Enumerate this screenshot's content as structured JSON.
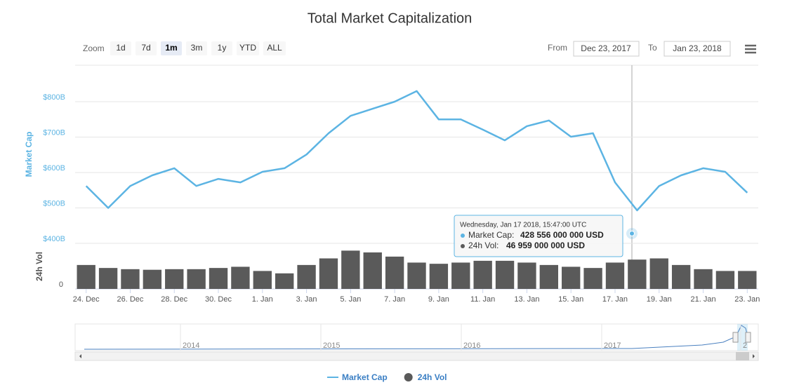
{
  "chart_data": {
    "type": "line",
    "title": "Total Market Capitalization",
    "zoom": {
      "label": "Zoom",
      "buttons": [
        "1d",
        "7d",
        "1m",
        "3m",
        "1y",
        "YTD",
        "ALL"
      ],
      "selected": 2
    },
    "range": {
      "from_label": "From",
      "from": "Dec 23, 2017",
      "to_label": "To",
      "to": "Jan 23, 2018"
    },
    "categories": [
      "24. Dec",
      null,
      "26. Dec",
      null,
      "28. Dec",
      null,
      "30. Dec",
      null,
      "1. Jan",
      null,
      "3. Jan",
      null,
      "5. Jan",
      null,
      "7. Jan",
      null,
      "9. Jan",
      null,
      "11. Jan",
      null,
      "13. Jan",
      null,
      "15. Jan",
      null,
      "17. Jan",
      null,
      "19. Jan",
      null,
      "21. Jan",
      null,
      "23. Jan"
    ],
    "ylabel": "Market Cap",
    "ylim": [
      400,
      903
    ],
    "yticks": [
      {
        "value": 400,
        "label": "$400B"
      },
      {
        "value": 500,
        "label": "$500B"
      },
      {
        "value": 600,
        "label": "$600B"
      },
      {
        "value": 700,
        "label": "$700B"
      },
      {
        "value": 800,
        "label": "$800B"
      }
    ],
    "y2label": "24h Vol",
    "y2lim": [
      0,
      75
    ],
    "y2ticks": [
      0
    ],
    "grid": true,
    "series": [
      {
        "name": "Market Cap",
        "color": "#5cb4e3",
        "values": [
          562,
          500,
          562,
          592,
          612,
          562,
          582,
          572,
          602,
          612,
          651,
          711,
          760,
          780,
          800,
          830,
          750,
          750,
          721,
          691,
          731,
          747,
          701,
          711,
          572,
          493,
          562,
          592,
          612,
          602,
          543
        ]
      },
      {
        "name": "24h Vol",
        "color": "#5a5a5a",
        "axis": "y2",
        "values": [
          40,
          35,
          33,
          32,
          33,
          33,
          35,
          37,
          30,
          26,
          40,
          51,
          64,
          61,
          54,
          44,
          42,
          44,
          47,
          47,
          44,
          40,
          37,
          35,
          44,
          49,
          51,
          40,
          33,
          30,
          30
        ]
      }
    ],
    "tooltip": {
      "date": "Wednesday, Jan 17 2018, 15:47:00 UTC",
      "rows": [
        {
          "label": "Market Cap:",
          "value": "428 556 000 000 USD"
        },
        {
          "label": "24h Vol:",
          "value": "46 959 000 000 USD"
        }
      ]
    },
    "navigator_labels": [
      "2014",
      "2015",
      "2016",
      "2017",
      "2"
    ]
  }
}
